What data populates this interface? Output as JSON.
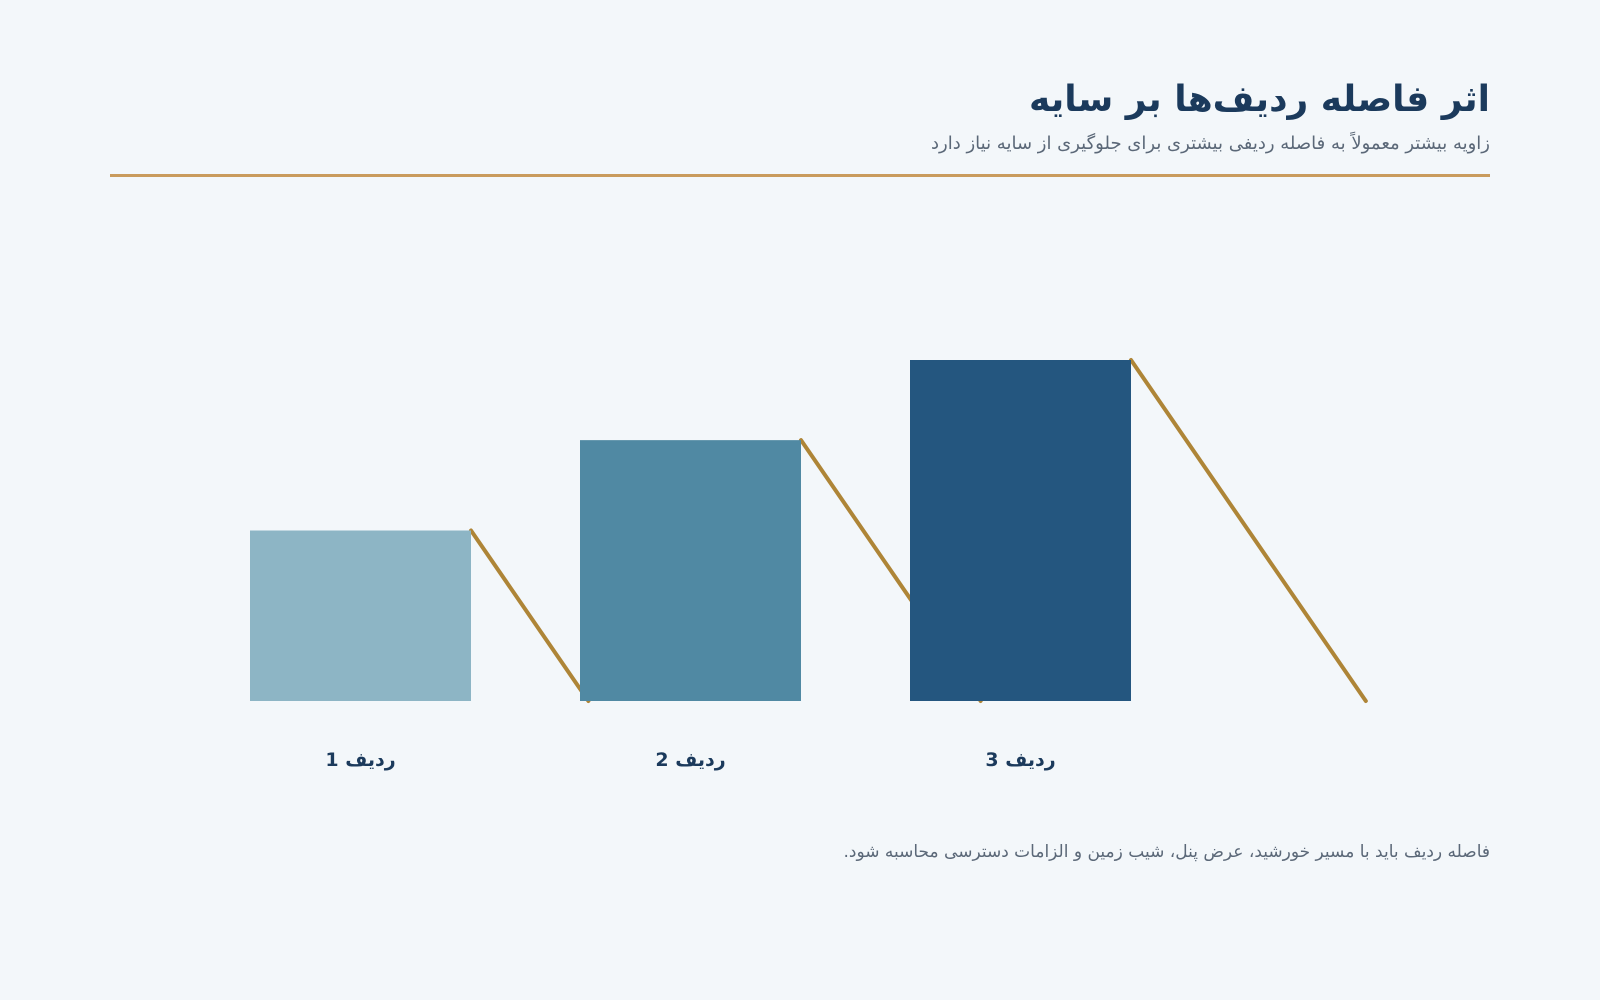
{
  "header": {
    "title": "اثر فاصله ردیف‌ها بر سایه",
    "subtitle": "زاویه بیشتر معمولاً به فاصله ردیفی بیشتری برای جلوگیری از سایه نیاز دارد"
  },
  "rows": [
    {
      "label": "ردیف 1",
      "relative_height": 0.5,
      "color": "#8db5c5"
    },
    {
      "label": "ردیف 2",
      "relative_height": 0.765,
      "color": "#5089a3"
    },
    {
      "label": "ردیف 3",
      "relative_height": 1.0,
      "color": "#24567f"
    }
  ],
  "shadow_color": "#ae8537",
  "divider_color": "#c99b5d",
  "footnote": "فاصله ردیف باید با مسیر خورشید، عرض پنل، شیب زمین و الزامات دسترسی محاسبه شود."
}
